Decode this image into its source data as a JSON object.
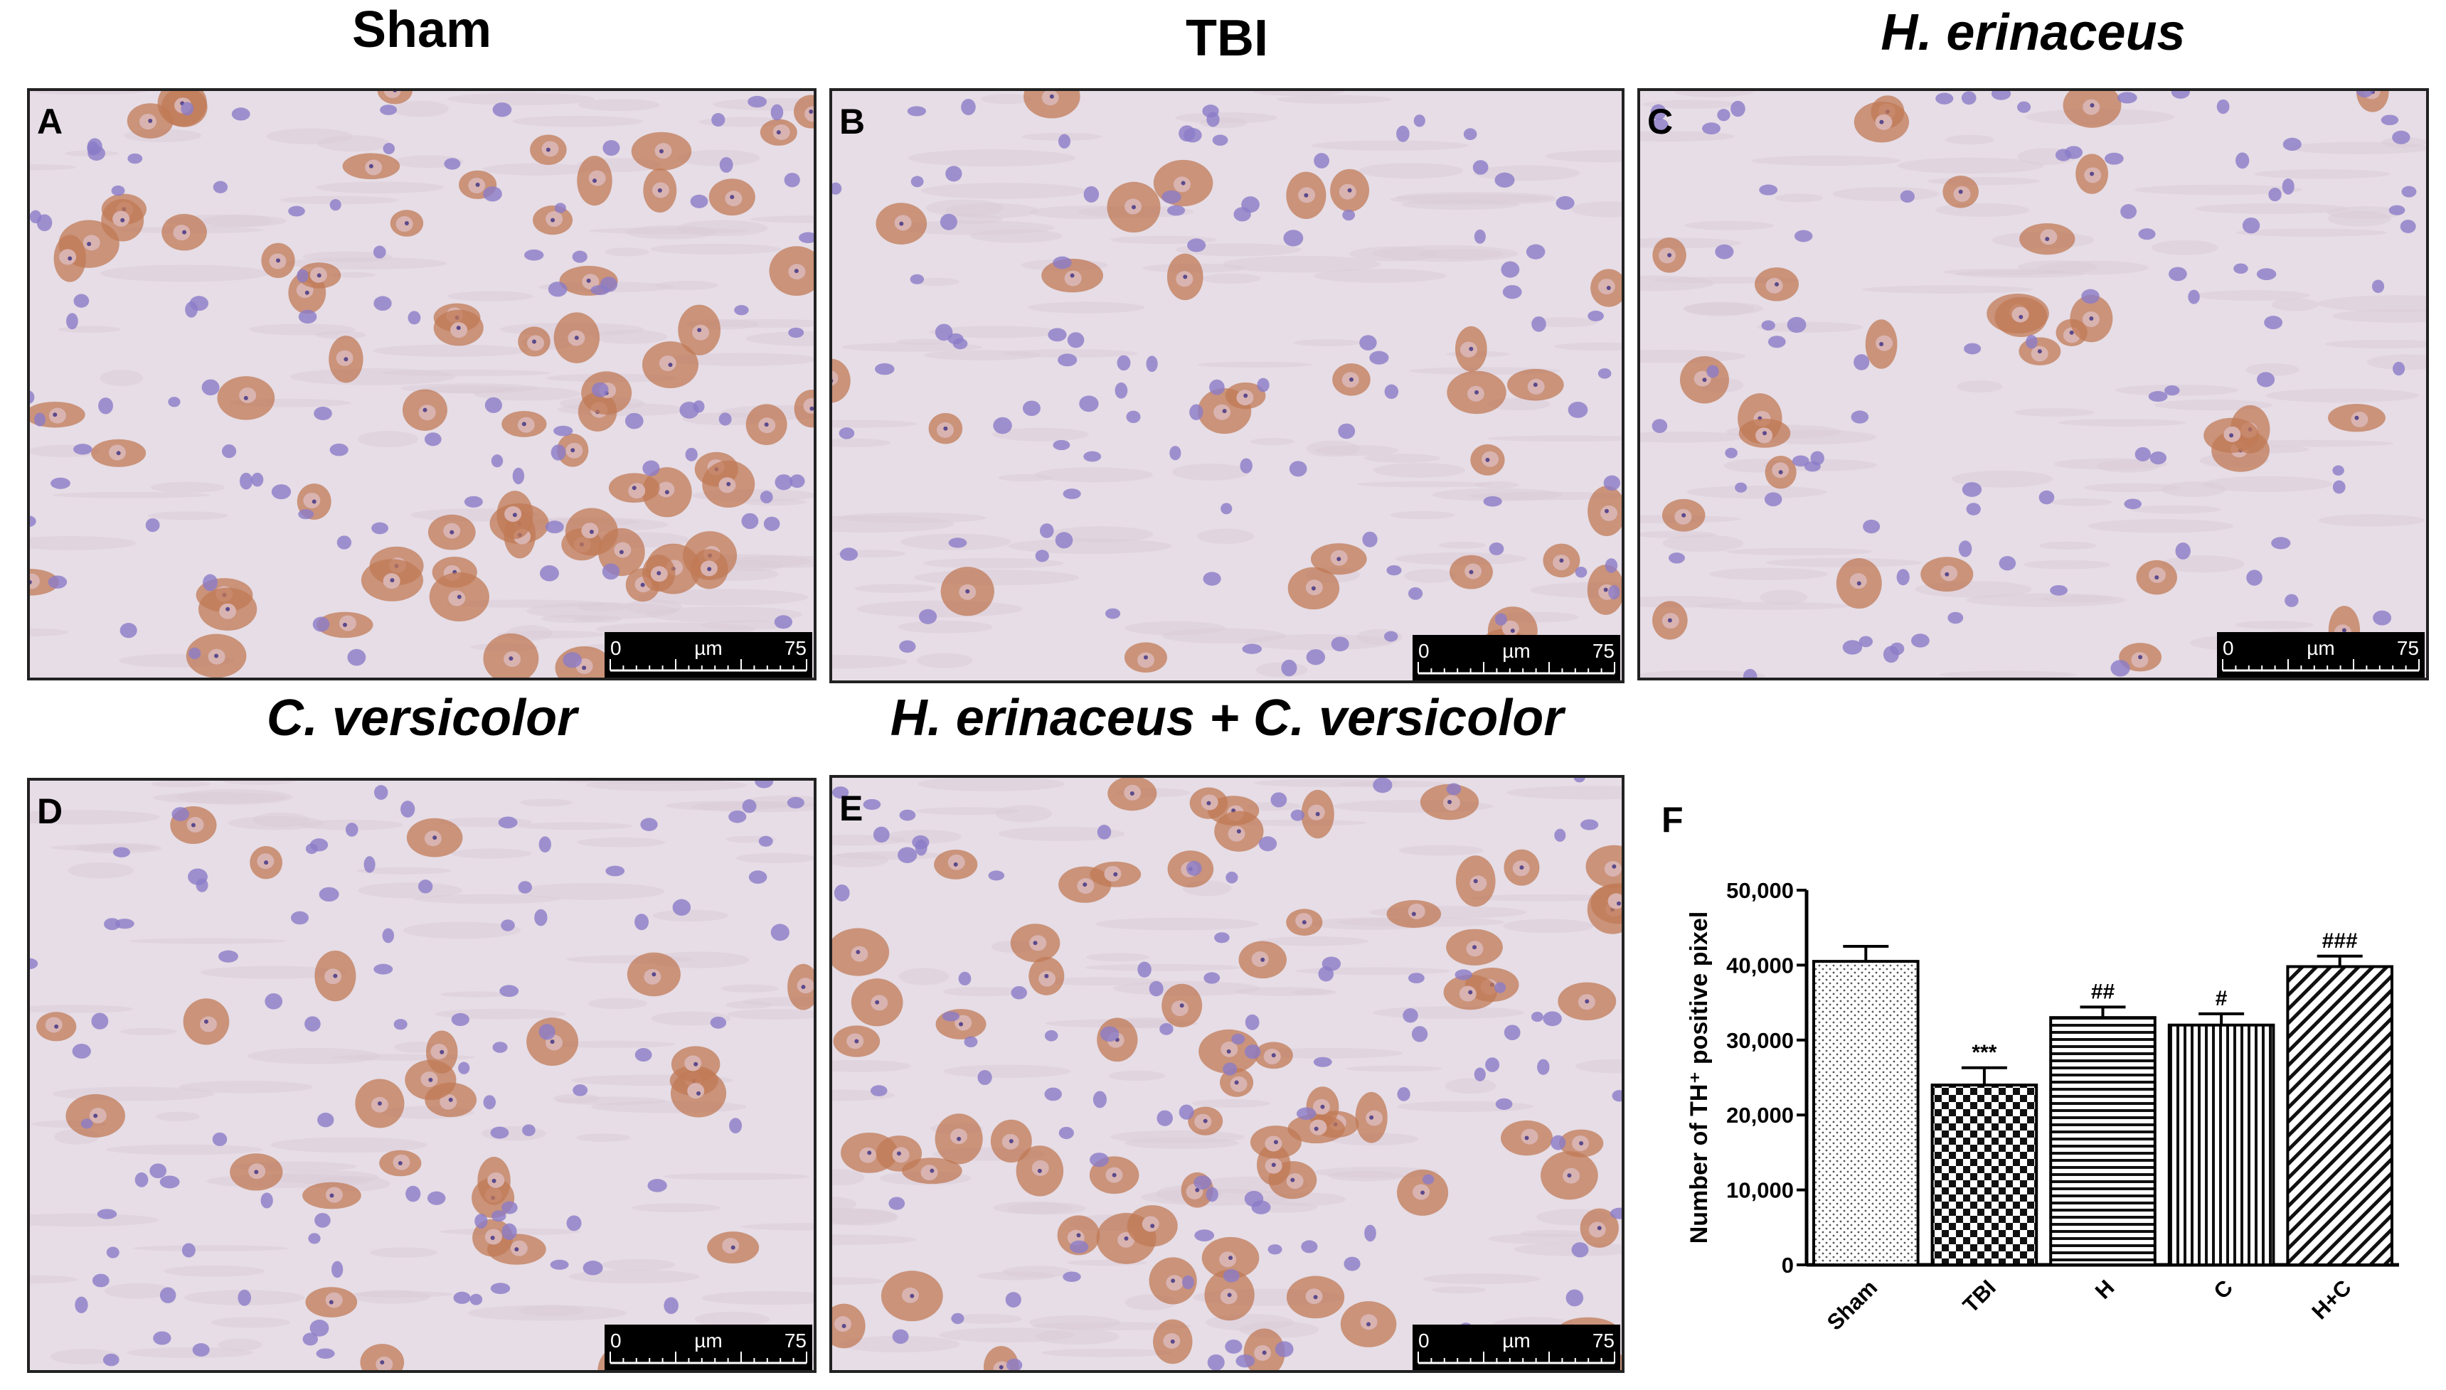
{
  "panels": [
    {
      "letter": "A",
      "title": "Sham",
      "scale": {
        "start": "0",
        "unit": "µm",
        "end": "75"
      }
    },
    {
      "letter": "B",
      "title": "TBI",
      "scale": {
        "start": "0",
        "unit": "µm",
        "end": "75"
      }
    },
    {
      "letter": "C",
      "title": "H. erinaceus",
      "scale": {
        "start": "0",
        "unit": "µm",
        "end": "75"
      }
    },
    {
      "letter": "D",
      "title": "C. versicolor",
      "scale": {
        "start": "0",
        "unit": "µm",
        "end": "75"
      }
    },
    {
      "letter": "E",
      "title": "H. erinaceus + C. versicolor",
      "scale": {
        "start": "0",
        "unit": "µm",
        "end": "75"
      }
    }
  ],
  "chart_data": {
    "type": "bar",
    "label": "F",
    "ylabel": "Number of TH⁺ positive pixel",
    "categories": [
      "Sham",
      "TBI",
      "H",
      "C",
      "H+C"
    ],
    "values": [
      40500,
      24000,
      33000,
      32000,
      39800
    ],
    "errors": [
      2000,
      2300,
      1400,
      1500,
      1400
    ],
    "annotations": [
      null,
      "***",
      "##",
      "#",
      "###"
    ],
    "patterns": [
      "dots",
      "checker",
      "hlines",
      "vlines",
      "diagonal"
    ],
    "ylim": [
      0,
      50000
    ],
    "yticks": [
      {
        "value": 0,
        "label": "0"
      },
      {
        "value": 10000,
        "label": "10,000"
      },
      {
        "value": 20000,
        "label": "20,000"
      },
      {
        "value": 30000,
        "label": "30,000"
      },
      {
        "value": 40000,
        "label": "40,000"
      },
      {
        "value": 50000,
        "label": "50,000"
      }
    ]
  }
}
